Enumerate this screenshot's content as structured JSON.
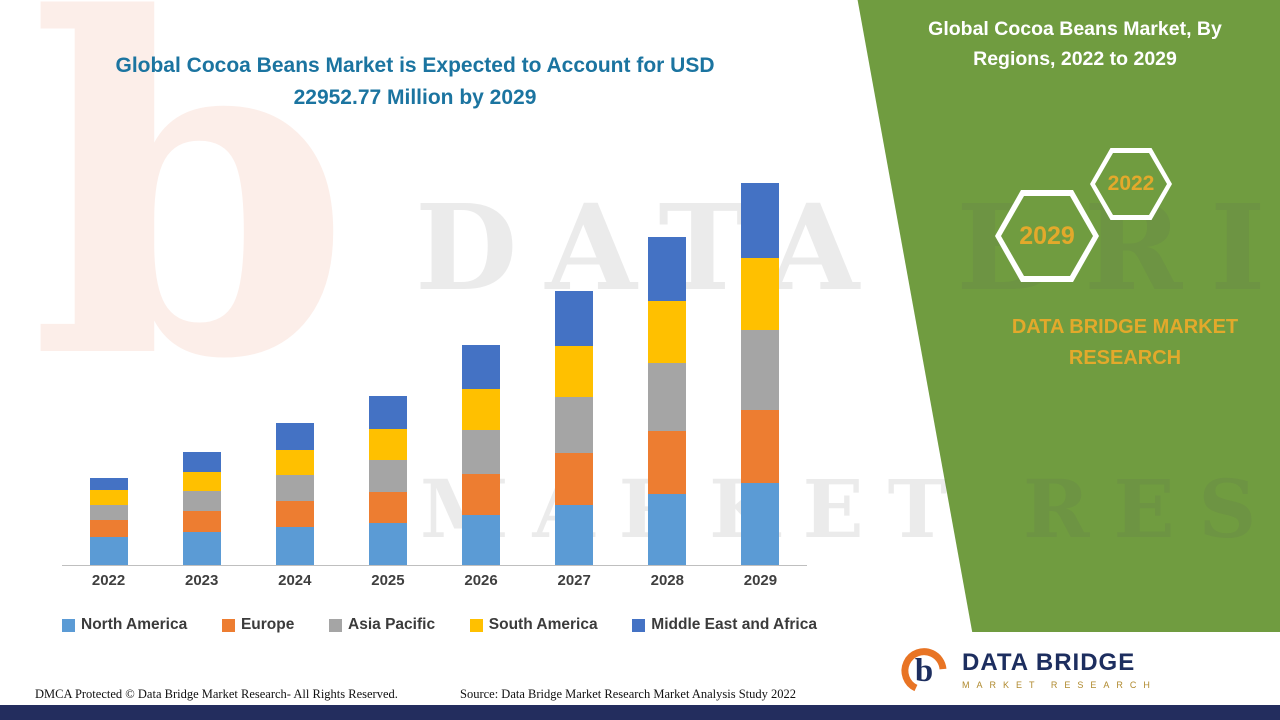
{
  "main": {
    "title": "Global Cocoa Beans Market is Expected to Account for USD 22952.77 Million by 2029"
  },
  "watermark": {
    "line1": "DATA BRIDGE",
    "line2": "MARKET RESEARCH",
    "logo_glyph": "b"
  },
  "panel": {
    "title": "Global Cocoa Beans Market, By Regions, 2022 to 2029",
    "badge_front": "2029",
    "badge_back": "2022",
    "brand": "DATA BRIDGE MARKET RESEARCH",
    "background_color": "#709c40",
    "accent_gold": "#e3a92b"
  },
  "footer": {
    "dmca": "DMCA Protected © Data Bridge Market Research- All Rights Reserved.",
    "source": "Source: Data Bridge Market Research Market Analysis Study 2022"
  },
  "logo": {
    "name": "DATA BRIDGE",
    "sub": "MARKET RESEARCH",
    "navy": "#1d2e5f",
    "orange": "#e87424"
  },
  "chart_data": {
    "type": "bar",
    "stacked": true,
    "title": "Global Cocoa Beans Market is Expected to Account for USD 22952.77 Million by 2029",
    "xlabel": "",
    "ylabel": "",
    "units": "USD Million",
    "ylim": [
      0,
      23000
    ],
    "grid": false,
    "legend_position": "bottom",
    "categories": [
      "2022",
      "2023",
      "2024",
      "2025",
      "2026",
      "2027",
      "2028",
      "2029"
    ],
    "series": [
      {
        "name": "North America",
        "color": "#5b9bd5",
        "values": [
          1682,
          1983,
          2283,
          2523,
          3004,
          3605,
          4266,
          4927
        ]
      },
      {
        "name": "Europe",
        "color": "#ed7d31",
        "values": [
          1021,
          1262,
          1562,
          1863,
          2463,
          3124,
          3785,
          4386
        ]
      },
      {
        "name": "Asia Pacific",
        "color": "#a5a5a5",
        "values": [
          901,
          1202,
          1562,
          1923,
          2644,
          3364,
          4085,
          4806
        ]
      },
      {
        "name": "South America",
        "color": "#ffc000",
        "values": [
          901,
          1142,
          1502,
          1863,
          2463,
          3064,
          3725,
          4326
        ]
      },
      {
        "name": "Middle East and Africa",
        "color": "#4472c4",
        "values": [
          721,
          1202,
          1622,
          1983,
          2644,
          3304,
          3845,
          4506
        ]
      }
    ],
    "totals": [
      5226,
      6791,
      8531,
      10155,
      13218,
      16461,
      19706,
      22951
    ],
    "annotation": "Total for 2029 stated as USD 22952.77 Million; segment values estimated from bar heights"
  }
}
